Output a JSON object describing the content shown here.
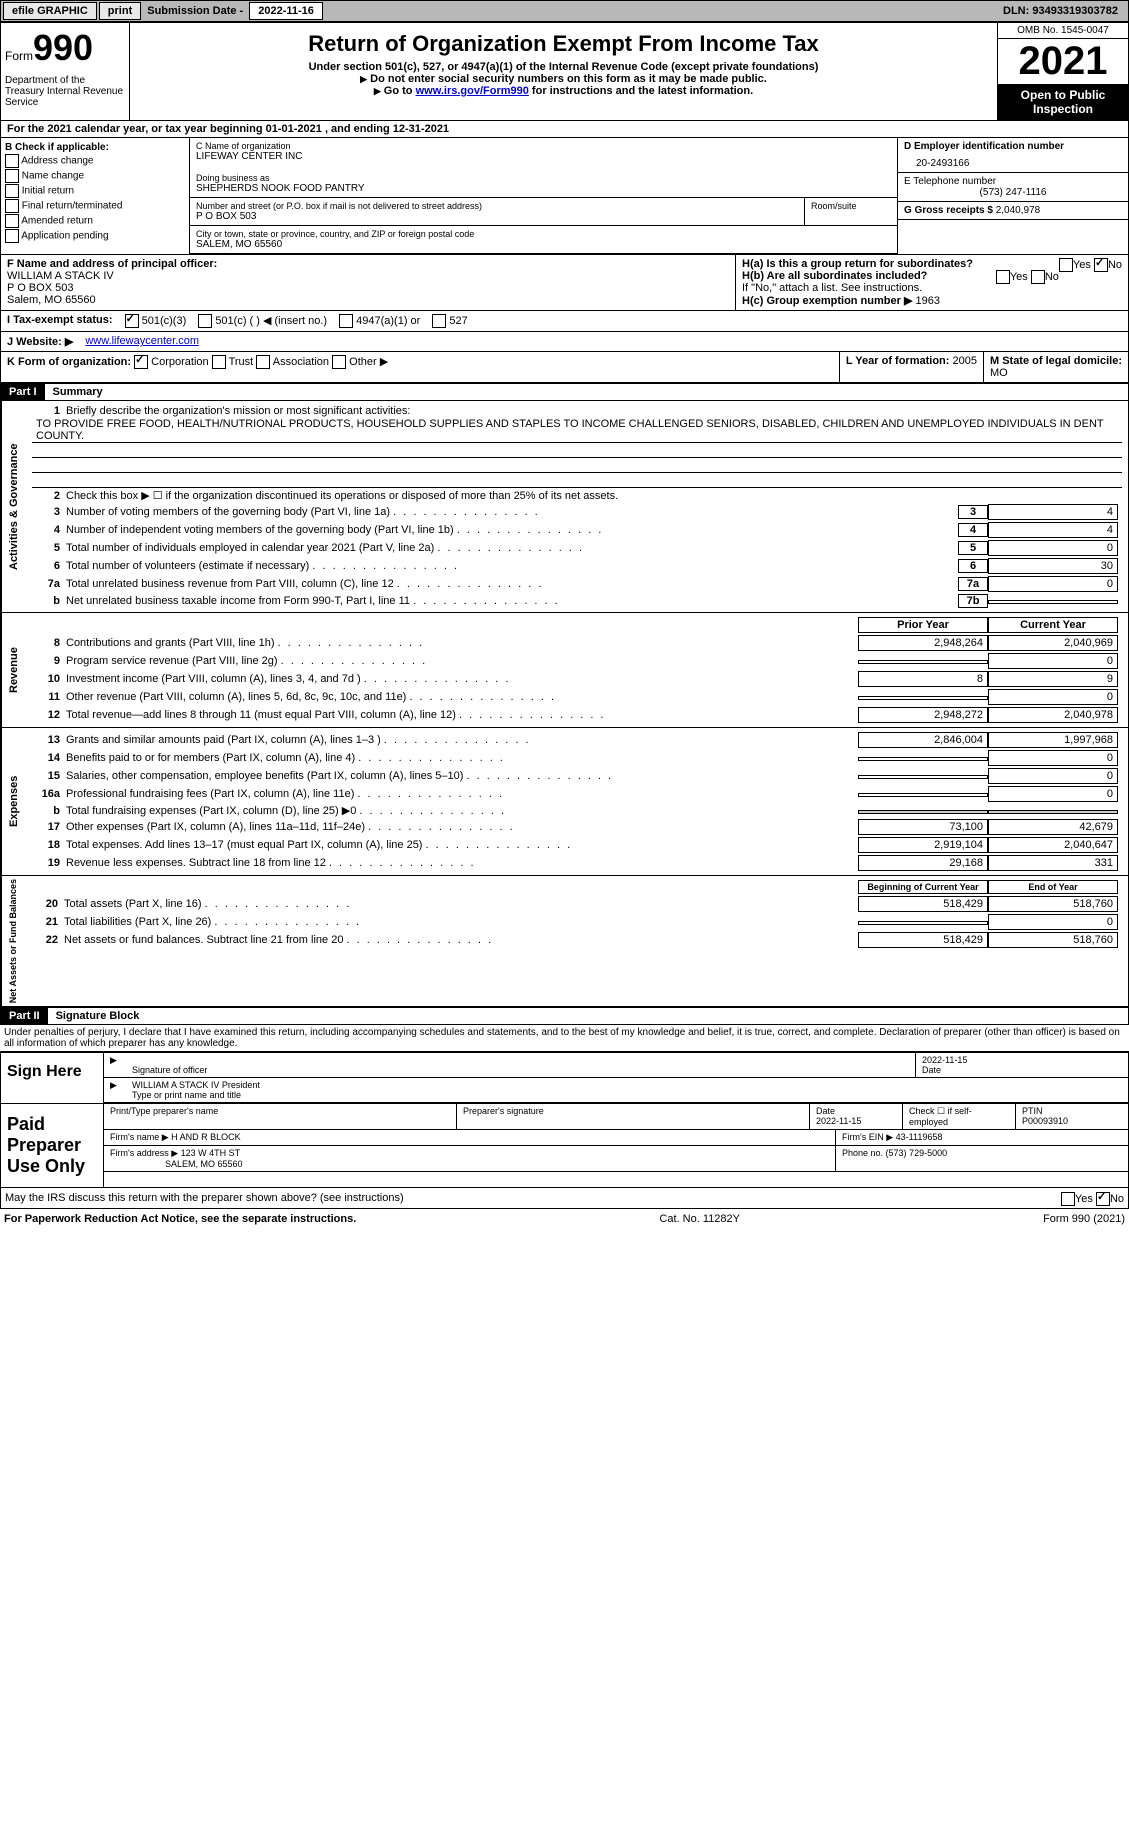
{
  "topbar": {
    "efile": "efile GRAPHIC",
    "print": "print",
    "submission_label": "Submission Date - ",
    "submission_date": "2022-11-16",
    "dln_label": "DLN: ",
    "dln": "93493319303782"
  },
  "header": {
    "form_label": "Form",
    "form_number": "990",
    "title": "Return of Organization Exempt From Income Tax",
    "subtitle1": "Under section 501(c), 527, or 4947(a)(1) of the Internal Revenue Code (except private foundations)",
    "subtitle2": "Do not enter social security numbers on this form as it may be made public.",
    "subtitle3_prefix": "Go to ",
    "subtitle3_link": "www.irs.gov/Form990",
    "subtitle3_suffix": " for instructions and the latest information.",
    "omb": "OMB No. 1545-0047",
    "year": "2021",
    "open_public": "Open to Public Inspection",
    "dept": "Department of the Treasury Internal Revenue Service"
  },
  "section_a": {
    "text": "For the 2021 calendar year, or tax year beginning ",
    "begin": "01-01-2021",
    "mid": "   , and ending ",
    "end": "12-31-2021"
  },
  "section_b": {
    "label": "B Check if applicable:",
    "opts": [
      "Address change",
      "Name change",
      "Initial return",
      "Final return/terminated",
      "Amended return",
      "Application pending"
    ]
  },
  "section_c": {
    "name_label": "C Name of organization",
    "name": "LIFEWAY CENTER INC",
    "dba_label": "Doing business as",
    "dba": "SHEPHERDS NOOK FOOD PANTRY",
    "street_label": "Number and street (or P.O. box if mail is not delivered to street address)",
    "room_label": "Room/suite",
    "street": "P O BOX 503",
    "city_label": "City or town, state or province, country, and ZIP or foreign postal code",
    "city": "SALEM, MO  65560"
  },
  "section_d": {
    "ein_label": "D Employer identification number",
    "ein": "20-2493166",
    "phone_label": "E Telephone number",
    "phone": "(573) 247-1116",
    "gross_label": "G Gross receipts $ ",
    "gross": "2,040,978"
  },
  "section_f": {
    "label": "F  Name and address of principal officer:",
    "name": "WILLIAM A STACK IV",
    "addr1": "P O BOX 503",
    "addr2": "Salem, MO  65560"
  },
  "section_h": {
    "ha": "H(a)  Is this a group return for subordinates?",
    "hb": "H(b)  Are all subordinates included?",
    "hb_note": "If \"No,\" attach a list. See instructions.",
    "hc": "H(c)  Group exemption number ▶",
    "hc_val": "1963",
    "yes": "Yes",
    "no": "No"
  },
  "section_i": {
    "label": "I  Tax-exempt status:",
    "o1": "501(c)(3)",
    "o2": "501(c) (   ) ◀ (insert no.)",
    "o3": "4947(a)(1) or",
    "o4": "527"
  },
  "section_j": {
    "label": "J  Website: ▶",
    "url": "www.lifewaycenter.com"
  },
  "section_k": {
    "label": "K Form of organization:",
    "o1": "Corporation",
    "o2": "Trust",
    "o3": "Association",
    "o4": "Other ▶"
  },
  "section_l": {
    "label": "L Year of formation: ",
    "val": "2005"
  },
  "section_m": {
    "label": "M State of legal domicile:",
    "val": "MO"
  },
  "part1": {
    "header": "Part I",
    "title": "Summary",
    "l1_label": "Briefly describe the organization's mission or most significant activities:",
    "l1_text": "TO PROVIDE FREE FOOD, HEALTH/NUTRIONAL PRODUCTS, HOUSEHOLD SUPPLIES AND STAPLES TO INCOME CHALLENGED SENIORS, DISABLED, CHILDREN AND UNEMPLOYED INDIVIDUALS IN DENT COUNTY.",
    "l2": "Check this box ▶ ☐  if the organization discontinued its operations or disposed of more than 25% of its net assets.",
    "vtext_ag": "Activities & Governance",
    "vtext_rev": "Revenue",
    "vtext_exp": "Expenses",
    "vtext_na": "Net Assets or Fund Balances",
    "lines_gov": [
      {
        "n": "3",
        "t": "Number of voting members of the governing body (Part VI, line 1a)",
        "box": "3",
        "v": "4"
      },
      {
        "n": "4",
        "t": "Number of independent voting members of the governing body (Part VI, line 1b)",
        "box": "4",
        "v": "4"
      },
      {
        "n": "5",
        "t": "Total number of individuals employed in calendar year 2021 (Part V, line 2a)",
        "box": "5",
        "v": "0"
      },
      {
        "n": "6",
        "t": "Total number of volunteers (estimate if necessary)",
        "box": "6",
        "v": "30"
      },
      {
        "n": "7a",
        "t": "Total unrelated business revenue from Part VIII, column (C), line 12",
        "box": "7a",
        "v": "0"
      },
      {
        "n": "b",
        "t": "Net unrelated business taxable income from Form 990-T, Part I, line 11",
        "box": "7b",
        "v": ""
      }
    ],
    "prior_year": "Prior Year",
    "current_year": "Current Year",
    "lines_rev": [
      {
        "n": "8",
        "t": "Contributions and grants (Part VIII, line 1h)",
        "py": "2,948,264",
        "cy": "2,040,969"
      },
      {
        "n": "9",
        "t": "Program service revenue (Part VIII, line 2g)",
        "py": "",
        "cy": "0"
      },
      {
        "n": "10",
        "t": "Investment income (Part VIII, column (A), lines 3, 4, and 7d )",
        "py": "8",
        "cy": "9"
      },
      {
        "n": "11",
        "t": "Other revenue (Part VIII, column (A), lines 5, 6d, 8c, 9c, 10c, and 11e)",
        "py": "",
        "cy": "0"
      },
      {
        "n": "12",
        "t": "Total revenue—add lines 8 through 11 (must equal Part VIII, column (A), line 12)",
        "py": "2,948,272",
        "cy": "2,040,978"
      }
    ],
    "lines_exp": [
      {
        "n": "13",
        "t": "Grants and similar amounts paid (Part IX, column (A), lines 1–3 )",
        "py": "2,846,004",
        "cy": "1,997,968"
      },
      {
        "n": "14",
        "t": "Benefits paid to or for members (Part IX, column (A), line 4)",
        "py": "",
        "cy": "0"
      },
      {
        "n": "15",
        "t": "Salaries, other compensation, employee benefits (Part IX, column (A), lines 5–10)",
        "py": "",
        "cy": "0"
      },
      {
        "n": "16a",
        "t": "Professional fundraising fees (Part IX, column (A), line 11e)",
        "py": "",
        "cy": "0"
      },
      {
        "n": "b",
        "t": "Total fundraising expenses (Part IX, column (D), line 25) ▶0",
        "py": "grey",
        "cy": "grey"
      },
      {
        "n": "17",
        "t": "Other expenses (Part IX, column (A), lines 11a–11d, 11f–24e)",
        "py": "73,100",
        "cy": "42,679"
      },
      {
        "n": "18",
        "t": "Total expenses. Add lines 13–17 (must equal Part IX, column (A), line 25)",
        "py": "2,919,104",
        "cy": "2,040,647"
      },
      {
        "n": "19",
        "t": "Revenue less expenses. Subtract line 18 from line 12",
        "py": "29,168",
        "cy": "331"
      }
    ],
    "begin_year": "Beginning of Current Year",
    "end_year": "End of Year",
    "lines_na": [
      {
        "n": "20",
        "t": "Total assets (Part X, line 16)",
        "py": "518,429",
        "cy": "518,760"
      },
      {
        "n": "21",
        "t": "Total liabilities (Part X, line 26)",
        "py": "",
        "cy": "0"
      },
      {
        "n": "22",
        "t": "Net assets or fund balances. Subtract line 21 from line 20",
        "py": "518,429",
        "cy": "518,760"
      }
    ]
  },
  "part2": {
    "header": "Part II",
    "title": "Signature Block",
    "declaration": "Under penalties of perjury, I declare that I have examined this return, including accompanying schedules and statements, and to the best of my knowledge and belief, it is true, correct, and complete. Declaration of preparer (other than officer) is based on all information of which preparer has any knowledge.",
    "sign_here": "Sign Here",
    "sig_officer": "Signature of officer",
    "sig_date": "2022-11-15",
    "sig_date_label": "Date",
    "sig_name": "WILLIAM A STACK IV  President",
    "sig_name_label": "Type or print name and title",
    "paid_label": "Paid Preparer Use Only",
    "prep_name_label": "Print/Type preparer's name",
    "prep_sig_label": "Preparer's signature",
    "prep_date_label": "Date",
    "prep_date": "2022-11-15",
    "prep_check_label": "Check ☐ if self-employed",
    "ptin_label": "PTIN",
    "ptin": "P00093910",
    "firm_name_label": "Firm's name      ▶ ",
    "firm_name": "H AND R BLOCK",
    "firm_ein_label": "Firm's EIN ▶ ",
    "firm_ein": "43-1119658",
    "firm_addr_label": "Firm's address ▶ ",
    "firm_addr": "123 W 4TH ST",
    "firm_city": "SALEM, MO  65560",
    "firm_phone_label": "Phone no. ",
    "firm_phone": "(573) 729-5000",
    "discuss": "May the IRS discuss this return with the preparer shown above? (see instructions)",
    "yes": "Yes",
    "no": "No"
  },
  "footer": {
    "paperwork": "For Paperwork Reduction Act Notice, see the separate instructions.",
    "cat": "Cat. No. 11282Y",
    "form": "Form 990 (2021)"
  }
}
